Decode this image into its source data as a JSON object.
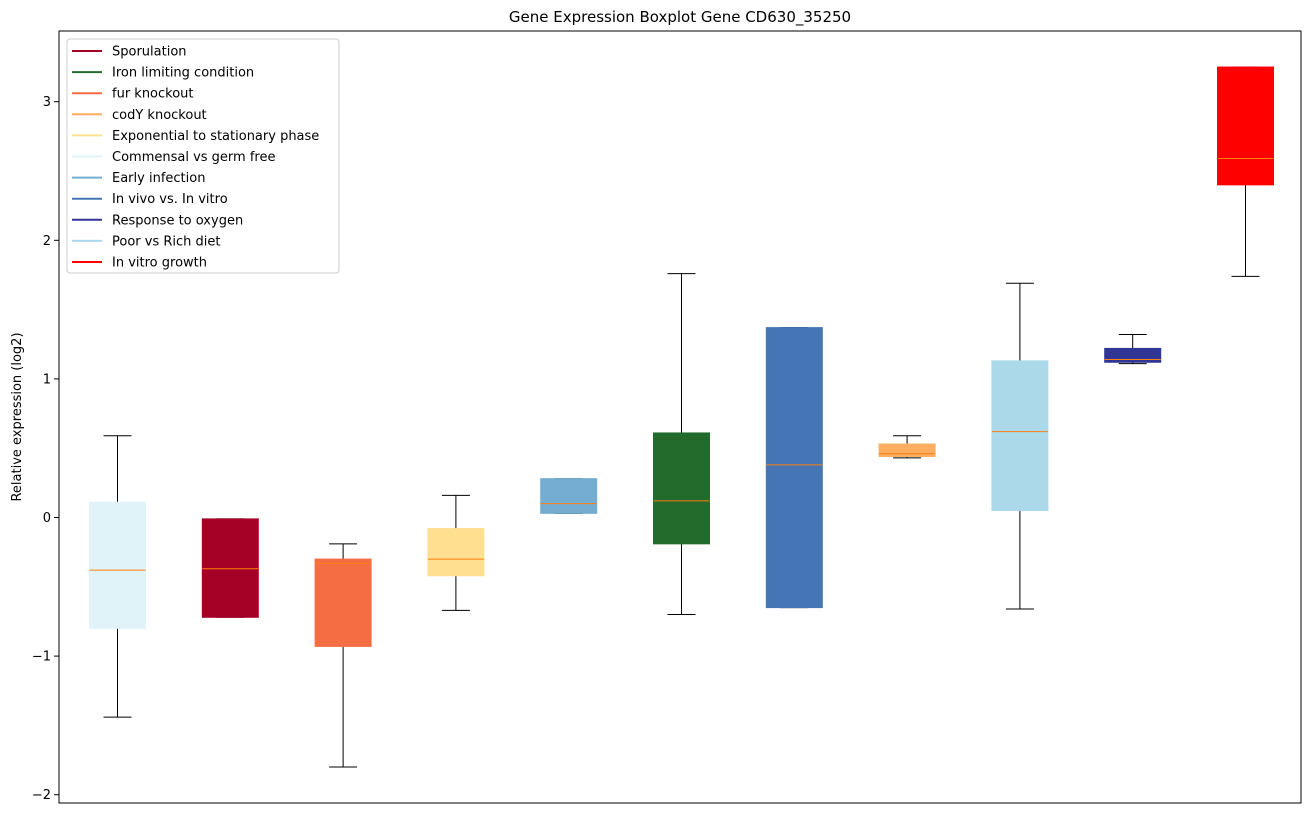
{
  "chart_data": {
    "type": "boxplot",
    "title": "Gene Expression Boxplot Gene CD630_35250",
    "xlabel": "",
    "ylabel": "Relative expression (log2)",
    "ylim": [
      -2.05,
      3.5
    ],
    "yticks": [
      -2,
      -1,
      0,
      1,
      2,
      3
    ],
    "ytick_labels": [
      "−2",
      "−1",
      "0",
      "1",
      "2",
      "3"
    ],
    "legend_position": "upper-left",
    "legend": [
      {
        "label": "Sporulation",
        "color": "#a50026"
      },
      {
        "label": "Iron limiting condition",
        "color": "#226b2d"
      },
      {
        "label": "fur knockout",
        "color": "#f46d43"
      },
      {
        "label": "codY knockout",
        "color": "#fdae61"
      },
      {
        "label": "Exponential to stationary phase",
        "color": "#fee090"
      },
      {
        "label": "Commensal vs germ free",
        "color": "#e0f3f8"
      },
      {
        "label": "Early infection",
        "color": "#74add1"
      },
      {
        "label": "In vivo vs. In vitro",
        "color": "#4575b4"
      },
      {
        "label": "Response to oxygen",
        "color": "#313695"
      },
      {
        "label": "Poor vs Rich diet",
        "color": "#abd9e9"
      },
      {
        "label": "In vitro growth",
        "color": "#ff0000"
      }
    ],
    "median_color": "#ff7f0e",
    "boxes": [
      {
        "condition": "Commensal vs germ free",
        "color": "#e0f3f8",
        "whisker_low": -1.44,
        "q1": -0.8,
        "median": -0.38,
        "q3": 0.11,
        "whisker_high": 0.59
      },
      {
        "condition": "Sporulation",
        "color": "#a50026",
        "whisker_low": -0.72,
        "q1": -0.72,
        "median": -0.37,
        "q3": -0.01,
        "whisker_high": -0.01
      },
      {
        "condition": "fur knockout",
        "color": "#f46d43",
        "whisker_low": -1.8,
        "q1": -0.93,
        "median": -0.33,
        "q3": -0.3,
        "whisker_high": -0.19
      },
      {
        "condition": "Exponential to stationary phase",
        "color": "#fee090",
        "whisker_low": -0.67,
        "q1": -0.42,
        "median": -0.3,
        "q3": -0.08,
        "whisker_high": 0.16
      },
      {
        "condition": "Early infection",
        "color": "#74add1",
        "whisker_low": 0.03,
        "q1": 0.03,
        "median": 0.1,
        "q3": 0.28,
        "whisker_high": 0.28
      },
      {
        "condition": "Iron limiting condition",
        "color": "#226b2d",
        "whisker_low": -0.7,
        "q1": -0.19,
        "median": 0.12,
        "q3": 0.61,
        "whisker_high": 1.76
      },
      {
        "condition": "In vivo vs. In vitro",
        "color": "#4575b4",
        "whisker_low": -0.65,
        "q1": -0.65,
        "median": 0.38,
        "q3": 1.37,
        "whisker_high": 1.37
      },
      {
        "condition": "codY knockout",
        "color": "#fdae61",
        "whisker_low": 0.43,
        "q1": 0.44,
        "median": 0.46,
        "q3": 0.53,
        "whisker_high": 0.59
      },
      {
        "condition": "Poor vs Rich diet",
        "color": "#abd9e9",
        "whisker_low": -0.66,
        "q1": 0.05,
        "median": 0.62,
        "q3": 1.13,
        "whisker_high": 1.69
      },
      {
        "condition": "Response to oxygen",
        "color": "#313695",
        "whisker_low": 1.11,
        "q1": 1.12,
        "median": 1.14,
        "q3": 1.22,
        "whisker_high": 1.32
      },
      {
        "condition": "In vitro growth",
        "color": "#ff0000",
        "whisker_low": 1.74,
        "q1": 2.4,
        "median": 2.59,
        "q3": 3.25,
        "whisker_high": 3.25
      }
    ]
  }
}
